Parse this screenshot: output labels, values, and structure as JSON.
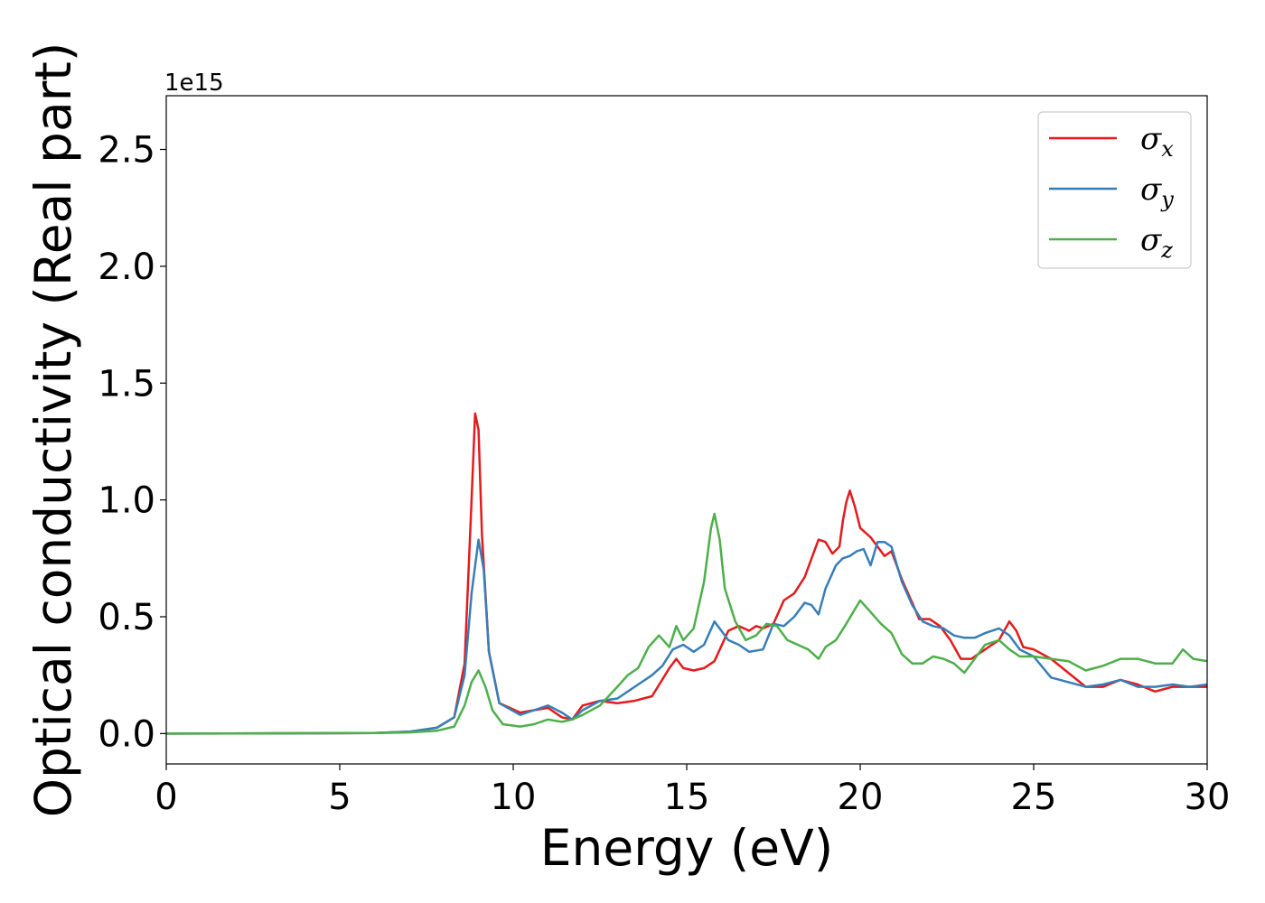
{
  "chart_data": {
    "type": "line",
    "title": "",
    "xlabel": "Energy (eV)",
    "ylabel": "Optical conductivity (Real part)",
    "y_offset_label": "1e15",
    "xlim": [
      0,
      30
    ],
    "ylim": [
      -0.13,
      2.73
    ],
    "x_ticks": [
      0,
      5,
      10,
      15,
      20,
      25,
      30
    ],
    "x_tick_labels": [
      "0",
      "5",
      "10",
      "15",
      "20",
      "25",
      "30"
    ],
    "y_ticks": [
      0.0,
      0.5,
      1.0,
      1.5,
      2.0,
      2.5
    ],
    "y_tick_labels": [
      "0.0",
      "0.5",
      "1.0",
      "1.5",
      "2.0",
      "2.5"
    ],
    "grid": false,
    "legend_position": "top-right",
    "series": [
      {
        "name": "σx",
        "symbol": "σ",
        "subscript": "x",
        "color": "#e41a1c",
        "points": [
          [
            0,
            0
          ],
          [
            6,
            0.002
          ],
          [
            7,
            0.008
          ],
          [
            7.8,
            0.025
          ],
          [
            8.3,
            0.07
          ],
          [
            8.6,
            0.3
          ],
          [
            8.8,
            1.0
          ],
          [
            8.9,
            1.37
          ],
          [
            9.0,
            1.3
          ],
          [
            9.1,
            0.85
          ],
          [
            9.3,
            0.35
          ],
          [
            9.6,
            0.13
          ],
          [
            10.2,
            0.09
          ],
          [
            10.6,
            0.1
          ],
          [
            11.0,
            0.11
          ],
          [
            11.4,
            0.07
          ],
          [
            11.7,
            0.06
          ],
          [
            12.0,
            0.12
          ],
          [
            12.5,
            0.14
          ],
          [
            13.0,
            0.13
          ],
          [
            13.5,
            0.14
          ],
          [
            14.0,
            0.16
          ],
          [
            14.5,
            0.28
          ],
          [
            14.7,
            0.32
          ],
          [
            14.9,
            0.28
          ],
          [
            15.2,
            0.27
          ],
          [
            15.5,
            0.28
          ],
          [
            15.8,
            0.31
          ],
          [
            16.2,
            0.44
          ],
          [
            16.5,
            0.46
          ],
          [
            16.8,
            0.44
          ],
          [
            17.0,
            0.46
          ],
          [
            17.2,
            0.45
          ],
          [
            17.5,
            0.47
          ],
          [
            17.8,
            0.57
          ],
          [
            18.1,
            0.6
          ],
          [
            18.4,
            0.67
          ],
          [
            18.6,
            0.75
          ],
          [
            18.8,
            0.83
          ],
          [
            19.0,
            0.82
          ],
          [
            19.2,
            0.77
          ],
          [
            19.4,
            0.8
          ],
          [
            19.5,
            0.91
          ],
          [
            19.6,
            0.99
          ],
          [
            19.7,
            1.04
          ],
          [
            19.85,
            0.97
          ],
          [
            20.0,
            0.88
          ],
          [
            20.3,
            0.84
          ],
          [
            20.5,
            0.8
          ],
          [
            20.7,
            0.76
          ],
          [
            20.9,
            0.78
          ],
          [
            21.2,
            0.66
          ],
          [
            21.5,
            0.56
          ],
          [
            21.7,
            0.49
          ],
          [
            22.0,
            0.49
          ],
          [
            22.3,
            0.46
          ],
          [
            22.6,
            0.4
          ],
          [
            22.9,
            0.32
          ],
          [
            23.2,
            0.32
          ],
          [
            23.5,
            0.35
          ],
          [
            23.8,
            0.38
          ],
          [
            24.0,
            0.4
          ],
          [
            24.3,
            0.48
          ],
          [
            24.5,
            0.44
          ],
          [
            24.7,
            0.37
          ],
          [
            25.0,
            0.36
          ],
          [
            25.5,
            0.32
          ],
          [
            26.0,
            0.26
          ],
          [
            26.5,
            0.2
          ],
          [
            27.0,
            0.2
          ],
          [
            27.5,
            0.23
          ],
          [
            28.0,
            0.21
          ],
          [
            28.5,
            0.18
          ],
          [
            29.0,
            0.2
          ],
          [
            29.5,
            0.2
          ],
          [
            30.0,
            0.2
          ]
        ]
      },
      {
        "name": "σy",
        "symbol": "σ",
        "subscript": "y",
        "color": "#377eb8",
        "points": [
          [
            0,
            0
          ],
          [
            6,
            0.002
          ],
          [
            7,
            0.008
          ],
          [
            7.8,
            0.025
          ],
          [
            8.3,
            0.07
          ],
          [
            8.6,
            0.25
          ],
          [
            8.8,
            0.6
          ],
          [
            9.0,
            0.83
          ],
          [
            9.15,
            0.7
          ],
          [
            9.3,
            0.35
          ],
          [
            9.6,
            0.13
          ],
          [
            10.2,
            0.08
          ],
          [
            10.6,
            0.1
          ],
          [
            11.0,
            0.12
          ],
          [
            11.4,
            0.09
          ],
          [
            11.7,
            0.06
          ],
          [
            12.0,
            0.1
          ],
          [
            12.5,
            0.14
          ],
          [
            13.0,
            0.15
          ],
          [
            13.5,
            0.2
          ],
          [
            14.0,
            0.25
          ],
          [
            14.3,
            0.29
          ],
          [
            14.6,
            0.36
          ],
          [
            14.9,
            0.38
          ],
          [
            15.2,
            0.35
          ],
          [
            15.5,
            0.38
          ],
          [
            15.8,
            0.48
          ],
          [
            16.2,
            0.4
          ],
          [
            16.5,
            0.38
          ],
          [
            16.8,
            0.35
          ],
          [
            17.2,
            0.36
          ],
          [
            17.5,
            0.47
          ],
          [
            17.8,
            0.46
          ],
          [
            18.1,
            0.5
          ],
          [
            18.4,
            0.56
          ],
          [
            18.6,
            0.55
          ],
          [
            18.8,
            0.51
          ],
          [
            19.0,
            0.62
          ],
          [
            19.3,
            0.72
          ],
          [
            19.5,
            0.75
          ],
          [
            19.7,
            0.76
          ],
          [
            19.9,
            0.78
          ],
          [
            20.1,
            0.79
          ],
          [
            20.3,
            0.72
          ],
          [
            20.5,
            0.82
          ],
          [
            20.7,
            0.82
          ],
          [
            20.9,
            0.8
          ],
          [
            21.2,
            0.65
          ],
          [
            21.5,
            0.55
          ],
          [
            21.8,
            0.48
          ],
          [
            22.1,
            0.46
          ],
          [
            22.4,
            0.45
          ],
          [
            22.7,
            0.42
          ],
          [
            23.0,
            0.41
          ],
          [
            23.3,
            0.41
          ],
          [
            23.6,
            0.43
          ],
          [
            24.0,
            0.45
          ],
          [
            24.3,
            0.42
          ],
          [
            24.6,
            0.36
          ],
          [
            25.0,
            0.33
          ],
          [
            25.5,
            0.24
          ],
          [
            26.0,
            0.22
          ],
          [
            26.5,
            0.2
          ],
          [
            27.0,
            0.21
          ],
          [
            27.5,
            0.23
          ],
          [
            28.0,
            0.2
          ],
          [
            28.5,
            0.2
          ],
          [
            29.0,
            0.21
          ],
          [
            29.5,
            0.2
          ],
          [
            30.0,
            0.21
          ]
        ]
      },
      {
        "name": "σz",
        "symbol": "σ",
        "subscript": "z",
        "color": "#4daf4a",
        "points": [
          [
            0,
            0
          ],
          [
            6,
            0.002
          ],
          [
            7,
            0.005
          ],
          [
            7.8,
            0.012
          ],
          [
            8.3,
            0.03
          ],
          [
            8.6,
            0.12
          ],
          [
            8.8,
            0.22
          ],
          [
            9.0,
            0.27
          ],
          [
            9.2,
            0.2
          ],
          [
            9.4,
            0.1
          ],
          [
            9.7,
            0.04
          ],
          [
            10.2,
            0.03
          ],
          [
            10.6,
            0.04
          ],
          [
            11.0,
            0.06
          ],
          [
            11.4,
            0.05
          ],
          [
            11.7,
            0.06
          ],
          [
            12.0,
            0.08
          ],
          [
            12.5,
            0.12
          ],
          [
            13.0,
            0.2
          ],
          [
            13.3,
            0.25
          ],
          [
            13.6,
            0.28
          ],
          [
            13.9,
            0.37
          ],
          [
            14.2,
            0.42
          ],
          [
            14.5,
            0.37
          ],
          [
            14.7,
            0.46
          ],
          [
            14.9,
            0.4
          ],
          [
            15.2,
            0.45
          ],
          [
            15.5,
            0.65
          ],
          [
            15.7,
            0.88
          ],
          [
            15.8,
            0.94
          ],
          [
            15.95,
            0.83
          ],
          [
            16.1,
            0.62
          ],
          [
            16.4,
            0.48
          ],
          [
            16.7,
            0.4
          ],
          [
            17.0,
            0.42
          ],
          [
            17.3,
            0.47
          ],
          [
            17.6,
            0.46
          ],
          [
            17.9,
            0.4
          ],
          [
            18.2,
            0.38
          ],
          [
            18.5,
            0.36
          ],
          [
            18.8,
            0.32
          ],
          [
            19.0,
            0.37
          ],
          [
            19.3,
            0.4
          ],
          [
            19.6,
            0.47
          ],
          [
            19.8,
            0.52
          ],
          [
            20.0,
            0.57
          ],
          [
            20.3,
            0.52
          ],
          [
            20.6,
            0.47
          ],
          [
            20.9,
            0.43
          ],
          [
            21.2,
            0.34
          ],
          [
            21.5,
            0.3
          ],
          [
            21.8,
            0.3
          ],
          [
            22.1,
            0.33
          ],
          [
            22.4,
            0.32
          ],
          [
            22.7,
            0.3
          ],
          [
            23.0,
            0.26
          ],
          [
            23.3,
            0.32
          ],
          [
            23.6,
            0.38
          ],
          [
            24.0,
            0.4
          ],
          [
            24.3,
            0.36
          ],
          [
            24.6,
            0.33
          ],
          [
            25.0,
            0.33
          ],
          [
            25.5,
            0.32
          ],
          [
            26.0,
            0.31
          ],
          [
            26.5,
            0.27
          ],
          [
            27.0,
            0.29
          ],
          [
            27.5,
            0.32
          ],
          [
            28.0,
            0.32
          ],
          [
            28.5,
            0.3
          ],
          [
            29.0,
            0.3
          ],
          [
            29.3,
            0.36
          ],
          [
            29.6,
            0.32
          ],
          [
            30.0,
            0.31
          ]
        ]
      }
    ]
  }
}
